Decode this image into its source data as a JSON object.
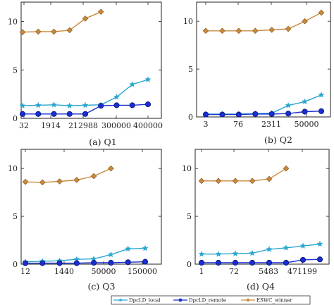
{
  "chart_data": [
    {
      "type": "line",
      "caption": "(a) Q1",
      "x_tick_labels": [
        "32",
        "1914",
        "212988",
        "300000",
        "400000"
      ],
      "y_tick_labels": [
        "0",
        "5",
        "10"
      ],
      "ylim": [
        0,
        12
      ],
      "grid": false,
      "series": [
        {
          "name": "DpcLD_local",
          "values": [
            1.3,
            1.35,
            1.4,
            1.3,
            1.35,
            1.4,
            2.2,
            3.5,
            4.0
          ]
        },
        {
          "name": "DpcLD_remote",
          "values": [
            0.45,
            0.45,
            0.45,
            0.45,
            0.45,
            1.3,
            1.35,
            1.35,
            1.45
          ]
        },
        {
          "name": "ESWC_winner",
          "values": [
            8.9,
            8.95,
            8.95,
            9.1,
            10.3,
            11.0
          ]
        }
      ]
    },
    {
      "type": "line",
      "caption": "(b) Q2",
      "x_tick_labels": [
        "3",
        "76",
        "2311",
        "50000"
      ],
      "y_tick_labels": [
        "0",
        "5",
        "10"
      ],
      "ylim": [
        0,
        12
      ],
      "grid": false,
      "series": [
        {
          "name": "DpcLD_local",
          "values": [
            0.3,
            0.3,
            0.3,
            0.35,
            0.4,
            1.2,
            1.6,
            2.3
          ]
        },
        {
          "name": "DpcLD_remote",
          "values": [
            0.25,
            0.25,
            0.25,
            0.3,
            0.3,
            0.35,
            0.55,
            0.6
          ]
        },
        {
          "name": "ESWC_winner",
          "values": [
            9.0,
            9.0,
            9.0,
            9.0,
            9.1,
            9.2,
            10.0,
            10.9
          ]
        }
      ]
    },
    {
      "type": "line",
      "caption": "(c) Q3",
      "x_tick_labels": [
        "12",
        "1440",
        "50000",
        "150000"
      ],
      "y_tick_labels": [
        "0",
        "5",
        "10"
      ],
      "ylim": [
        0,
        12
      ],
      "grid": false,
      "series": [
        {
          "name": "DpcLD_local",
          "values": [
            0.25,
            0.3,
            0.35,
            0.5,
            0.55,
            1.0,
            1.6,
            1.65
          ]
        },
        {
          "name": "DpcLD_remote",
          "values": [
            0.1,
            0.1,
            0.1,
            0.1,
            0.15,
            0.15,
            0.2,
            0.25
          ]
        },
        {
          "name": "ESWC_winner",
          "values": [
            8.6,
            8.55,
            8.65,
            8.8,
            9.2,
            10.0
          ]
        }
      ]
    },
    {
      "type": "line",
      "caption": "(d) Q4",
      "x_tick_labels": [
        "1",
        "72",
        "5483",
        "471199"
      ],
      "y_tick_labels": [
        "0",
        "5",
        "10"
      ],
      "ylim": [
        0,
        12
      ],
      "grid": false,
      "series": [
        {
          "name": "DpcLD_local",
          "values": [
            1.05,
            1.05,
            1.1,
            1.15,
            1.55,
            1.7,
            1.9,
            2.1
          ]
        },
        {
          "name": "DpcLD_remote",
          "values": [
            0.15,
            0.15,
            0.15,
            0.15,
            0.15,
            0.15,
            0.45,
            0.5
          ]
        },
        {
          "name": "ESWC_winner",
          "values": [
            8.7,
            8.7,
            8.7,
            8.7,
            8.9,
            10.0
          ]
        }
      ]
    }
  ],
  "legend": {
    "placement": "bottom",
    "entries": [
      "DpcLD_local",
      "DpcLD_remote",
      "ESWC_winner"
    ]
  },
  "colors": {
    "DpcLD_local": "#2aa6cf",
    "DpcLD_remote": "#1a2fd0",
    "ESWC_winner": "#c98a3c",
    "axis": "#222222"
  },
  "markers": {
    "DpcLD_local": "star",
    "DpcLD_remote": "circle",
    "ESWC_winner": "diamond"
  }
}
